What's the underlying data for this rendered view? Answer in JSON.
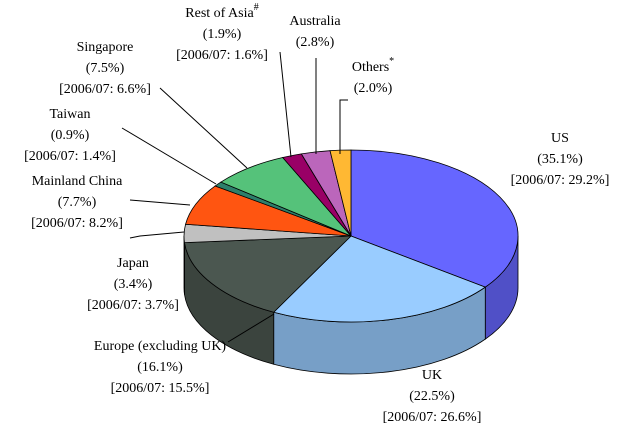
{
  "chart_data": {
    "type": "pie3d",
    "categories": [
      "US",
      "UK",
      "Europe (excluding UK)",
      "Japan",
      "Mainland China",
      "Taiwan",
      "Singapore",
      "Rest of Asia",
      "Australia",
      "Others"
    ],
    "superscripts": [
      null,
      null,
      null,
      null,
      null,
      null,
      null,
      "#",
      null,
      "*"
    ],
    "values": [
      35.1,
      22.5,
      16.1,
      3.4,
      7.7,
      0.9,
      7.5,
      1.9,
      2.8,
      2.0
    ],
    "value_labels": [
      "(35.1%)",
      "(22.5%)",
      "(16.1%)",
      "(3.4%)",
      "(7.7%)",
      "(0.9%)",
      "(7.5%)",
      "(1.9%)",
      "(2.8%)",
      "(2.0%)"
    ],
    "prior_labels": [
      "[2006/07: 29.2%]",
      "[2006/07: 26.6%]",
      "[2006/07: 15.5%]",
      "[2006/07: 3.7%]",
      "[2006/07: 8.2%]",
      "[2006/07: 1.4%]",
      "[2006/07: 6.6%]",
      "[2006/07: 1.6%]",
      null,
      null
    ],
    "colors": [
      "#6666ff",
      "#99ccff",
      "#4b5750",
      "#c0c0c0",
      "#ff5511",
      "#2d7f6a",
      "#55c27a",
      "#990066",
      "#bb66bb",
      "#ffb833"
    ]
  }
}
